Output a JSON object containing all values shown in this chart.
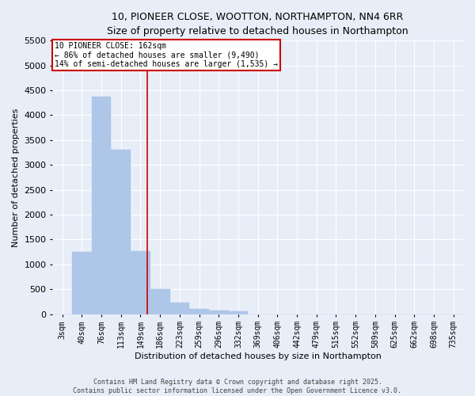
{
  "title_line1": "10, PIONEER CLOSE, WOOTTON, NORTHAMPTON, NN4 6RR",
  "title_line2": "Size of property relative to detached houses in Northampton",
  "xlabel": "Distribution of detached houses by size in Northampton",
  "ylabel": "Number of detached properties",
  "footnote_line1": "Contains HM Land Registry data © Crown copyright and database right 2025.",
  "footnote_line2": "Contains public sector information licensed under the Open Government Licence v3.0.",
  "categories": [
    "3sqm",
    "40sqm",
    "76sqm",
    "113sqm",
    "149sqm",
    "186sqm",
    "223sqm",
    "259sqm",
    "296sqm",
    "332sqm",
    "369sqm",
    "406sqm",
    "442sqm",
    "479sqm",
    "515sqm",
    "552sqm",
    "589sqm",
    "625sqm",
    "662sqm",
    "698sqm",
    "735sqm"
  ],
  "values": [
    0,
    1255,
    4375,
    3300,
    1270,
    500,
    225,
    100,
    75,
    50,
    0,
    0,
    0,
    0,
    0,
    0,
    0,
    0,
    0,
    0,
    0
  ],
  "bar_color": "#aec6e8",
  "bar_edge_color": "#aec6e8",
  "background_color": "#e8eef8",
  "grid_color": "#ffffff",
  "ylim": [
    0,
    5500
  ],
  "yticks": [
    0,
    500,
    1000,
    1500,
    2000,
    2500,
    3000,
    3500,
    4000,
    4500,
    5000,
    5500
  ],
  "red_line_x": 4.33,
  "annotation_title": "10 PIONEER CLOSE: 162sqm",
  "annotation_line1": "← 86% of detached houses are smaller (9,490)",
  "annotation_line2": "14% of semi-detached houses are larger (1,535) →",
  "annotation_box_color": "#ffffff",
  "annotation_border_color": "#cc0000",
  "title_fontsize": 9,
  "xlabel_fontsize": 8,
  "ylabel_fontsize": 8,
  "tick_fontsize": 7,
  "annot_fontsize": 7,
  "footnote_fontsize": 6
}
